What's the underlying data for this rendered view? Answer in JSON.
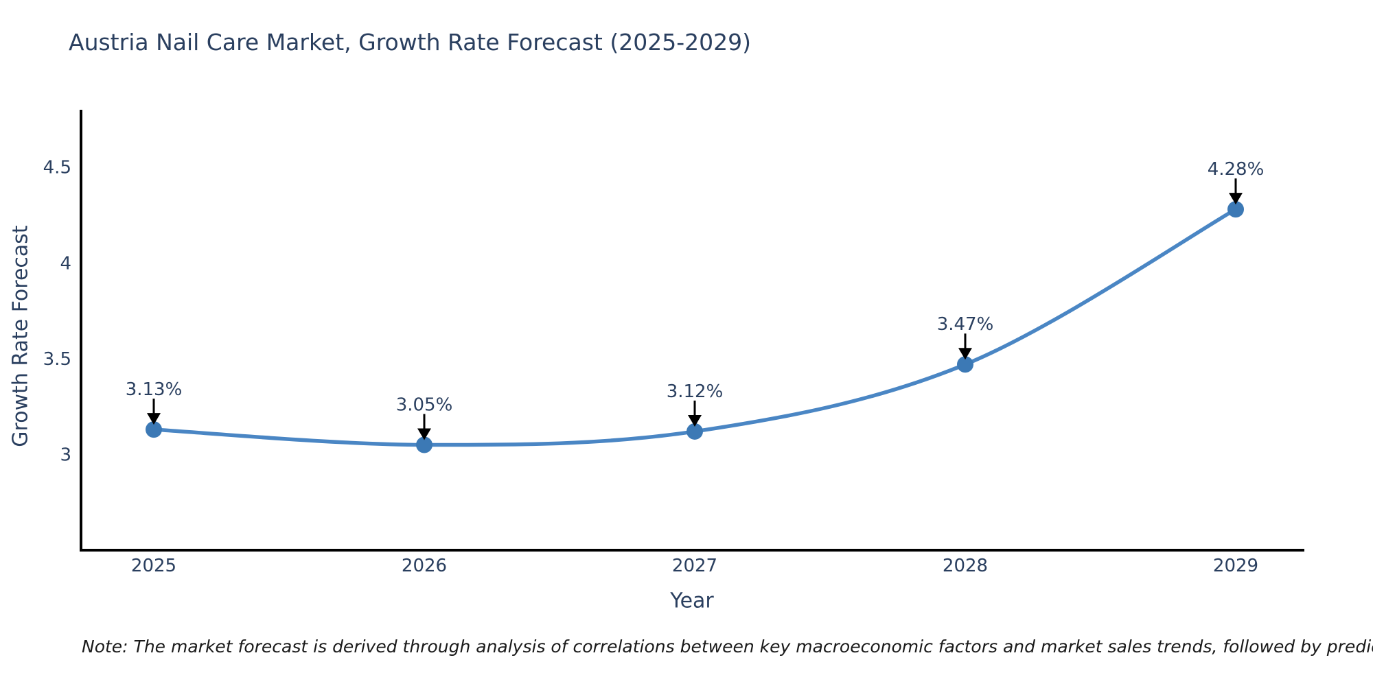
{
  "title": "Austria Nail Care Market, Growth Rate Forecast (2025-2029)",
  "note": "Note: The market forecast is derived through analysis of correlations between key macroeconomic factors and market sales trends, followed by predictive modeling to project future sales",
  "chart_data": {
    "type": "line",
    "title": "Austria Nail Care Market, Growth Rate Forecast (2025-2029)",
    "xlabel": "Year",
    "ylabel": "Growth Rate Forecast",
    "categories": [
      "2025",
      "2026",
      "2027",
      "2028",
      "2029"
    ],
    "series": [
      {
        "name": "Growth Rate Forecast",
        "values": [
          3.13,
          3.05,
          3.12,
          3.47,
          4.28
        ]
      }
    ],
    "point_labels": [
      "3.13%",
      "3.05%",
      "3.12%",
      "3.47%",
      "4.28%"
    ],
    "ytick_labels": [
      "3",
      "3.5",
      "4",
      "4.5"
    ],
    "ytick_values": [
      3,
      3.5,
      4,
      4.5
    ],
    "ylim": [
      2.5,
      4.8
    ],
    "line_shape": "spline",
    "markers": true,
    "grid": false,
    "legend_position": "none",
    "annotation_arrows": true,
    "colors": {
      "line": "#4a86c4",
      "marker": "#3c79b5",
      "arrow": "#000000",
      "axis_line": "#000000",
      "text": "#2a3f5f",
      "note_text": "#1a1a1a",
      "background": "#ffffff"
    }
  }
}
